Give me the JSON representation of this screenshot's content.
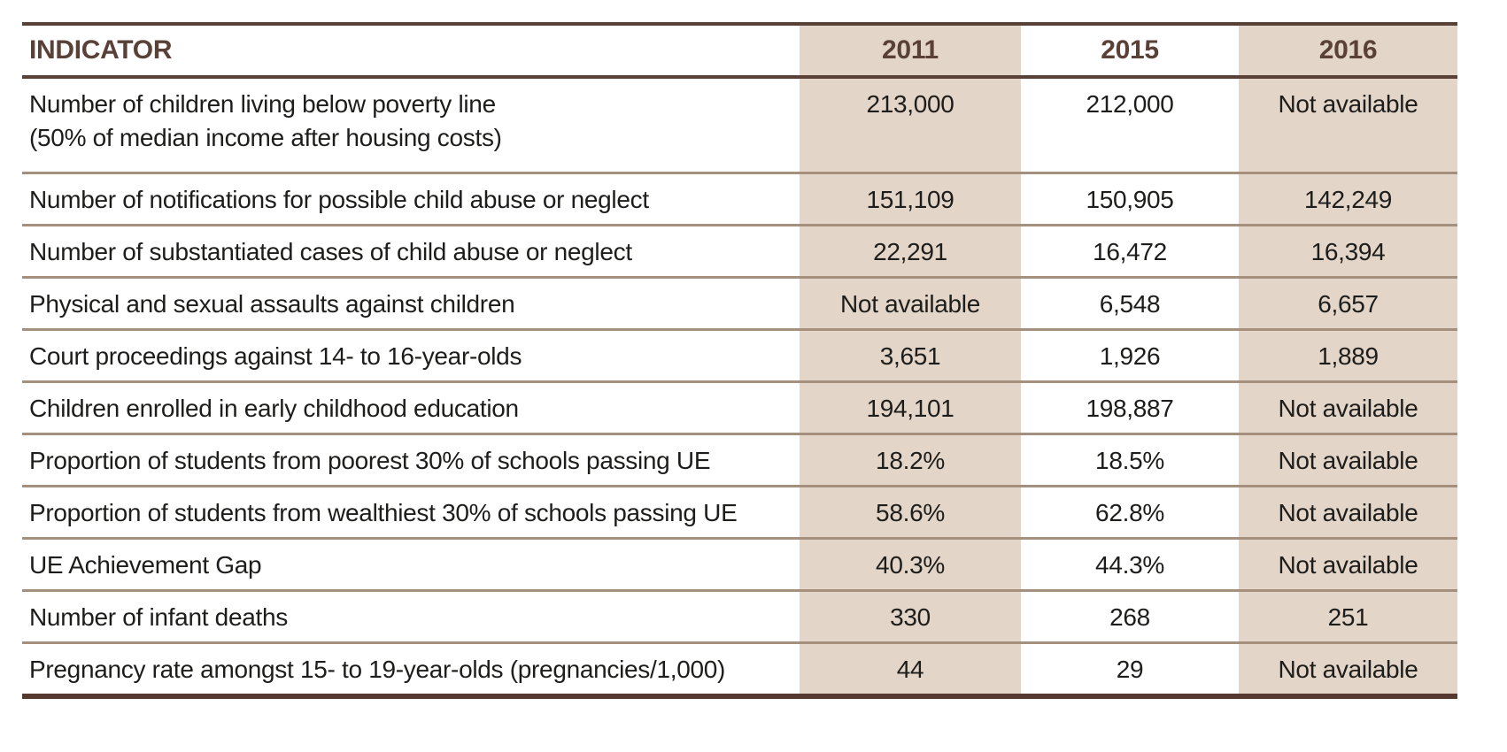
{
  "colors": {
    "accent_brown": "#5a4138",
    "column_tint": "#e3d5c8",
    "row_rule": "#a5907e",
    "body_text": "#1d1d1b"
  },
  "table": {
    "columns": [
      "INDICATOR",
      "2011",
      "2015",
      "2016"
    ],
    "rows": [
      {
        "indicator": "Number of children living below poverty line\n(50% of median income after housing costs)",
        "values": [
          "213,000",
          "212,000",
          "Not available"
        ],
        "tall": true
      },
      {
        "indicator": "Number of notifications for possible child abuse or neglect",
        "values": [
          "151,109",
          "150,905",
          "142,249"
        ],
        "tall": false
      },
      {
        "indicator": "Number of substantiated cases of child abuse or neglect",
        "values": [
          "22,291",
          "16,472",
          "16,394"
        ],
        "tall": false
      },
      {
        "indicator": "Physical and sexual assaults against children",
        "values": [
          "Not available",
          "6,548",
          "6,657"
        ],
        "tall": false
      },
      {
        "indicator": "Court proceedings against 14- to 16-year-olds",
        "values": [
          "3,651",
          "1,926",
          "1,889"
        ],
        "tall": false
      },
      {
        "indicator": "Children enrolled in early childhood education",
        "values": [
          "194,101",
          "198,887",
          "Not available"
        ],
        "tall": false
      },
      {
        "indicator": "Proportion of students from poorest 30% of schools passing UE",
        "values": [
          "18.2%",
          "18.5%",
          "Not available"
        ],
        "tall": false
      },
      {
        "indicator": "Proportion of students from wealthiest 30% of schools passing UE",
        "values": [
          "58.6%",
          "62.8%",
          "Not available"
        ],
        "tall": false
      },
      {
        "indicator": "UE Achievement Gap",
        "values": [
          "40.3%",
          "44.3%",
          "Not available"
        ],
        "tall": false
      },
      {
        "indicator": "Number of infant deaths",
        "values": [
          "330",
          "268",
          "251"
        ],
        "tall": false
      },
      {
        "indicator": "Pregnancy rate amongst 15- to 19-year-olds (pregnancies/1,000)",
        "values": [
          "44",
          "29",
          "Not available"
        ],
        "tall": false
      }
    ]
  }
}
